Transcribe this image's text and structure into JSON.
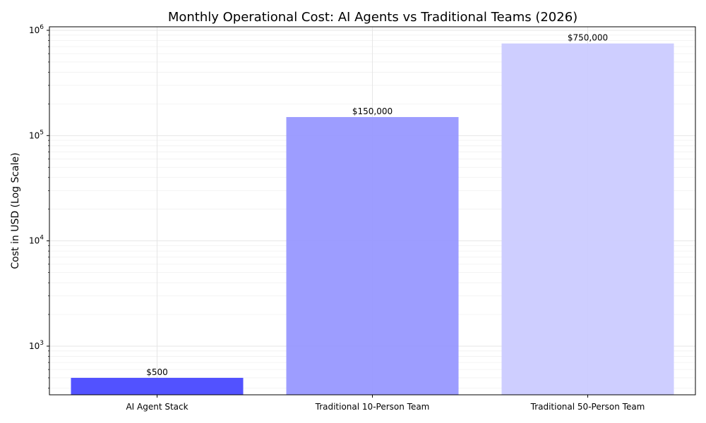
{
  "chart_data": {
    "type": "bar",
    "title": "Monthly Operational Cost: AI Agents vs Traditional Teams (2026)",
    "xlabel": "",
    "ylabel": "Cost in USD (Log Scale)",
    "yscale": "log",
    "ylim": [
      345,
      1080000
    ],
    "grid": true,
    "categories": [
      "AI Agent Stack",
      "Traditional 10-Person Team",
      "Traditional 50-Person Team"
    ],
    "values": [
      500,
      150000,
      750000
    ],
    "value_labels": [
      "$500",
      "$150,000",
      "$750,000"
    ],
    "colors": [
      "#4b4bff",
      "#9999ff",
      "#ccccff"
    ],
    "y_ticks": [
      {
        "value": 1000,
        "label": "10",
        "exp": "3"
      },
      {
        "value": 10000,
        "label": "10",
        "exp": "4"
      },
      {
        "value": 100000,
        "label": "10",
        "exp": "5"
      },
      {
        "value": 1000000,
        "label": "10",
        "exp": "6"
      }
    ]
  }
}
